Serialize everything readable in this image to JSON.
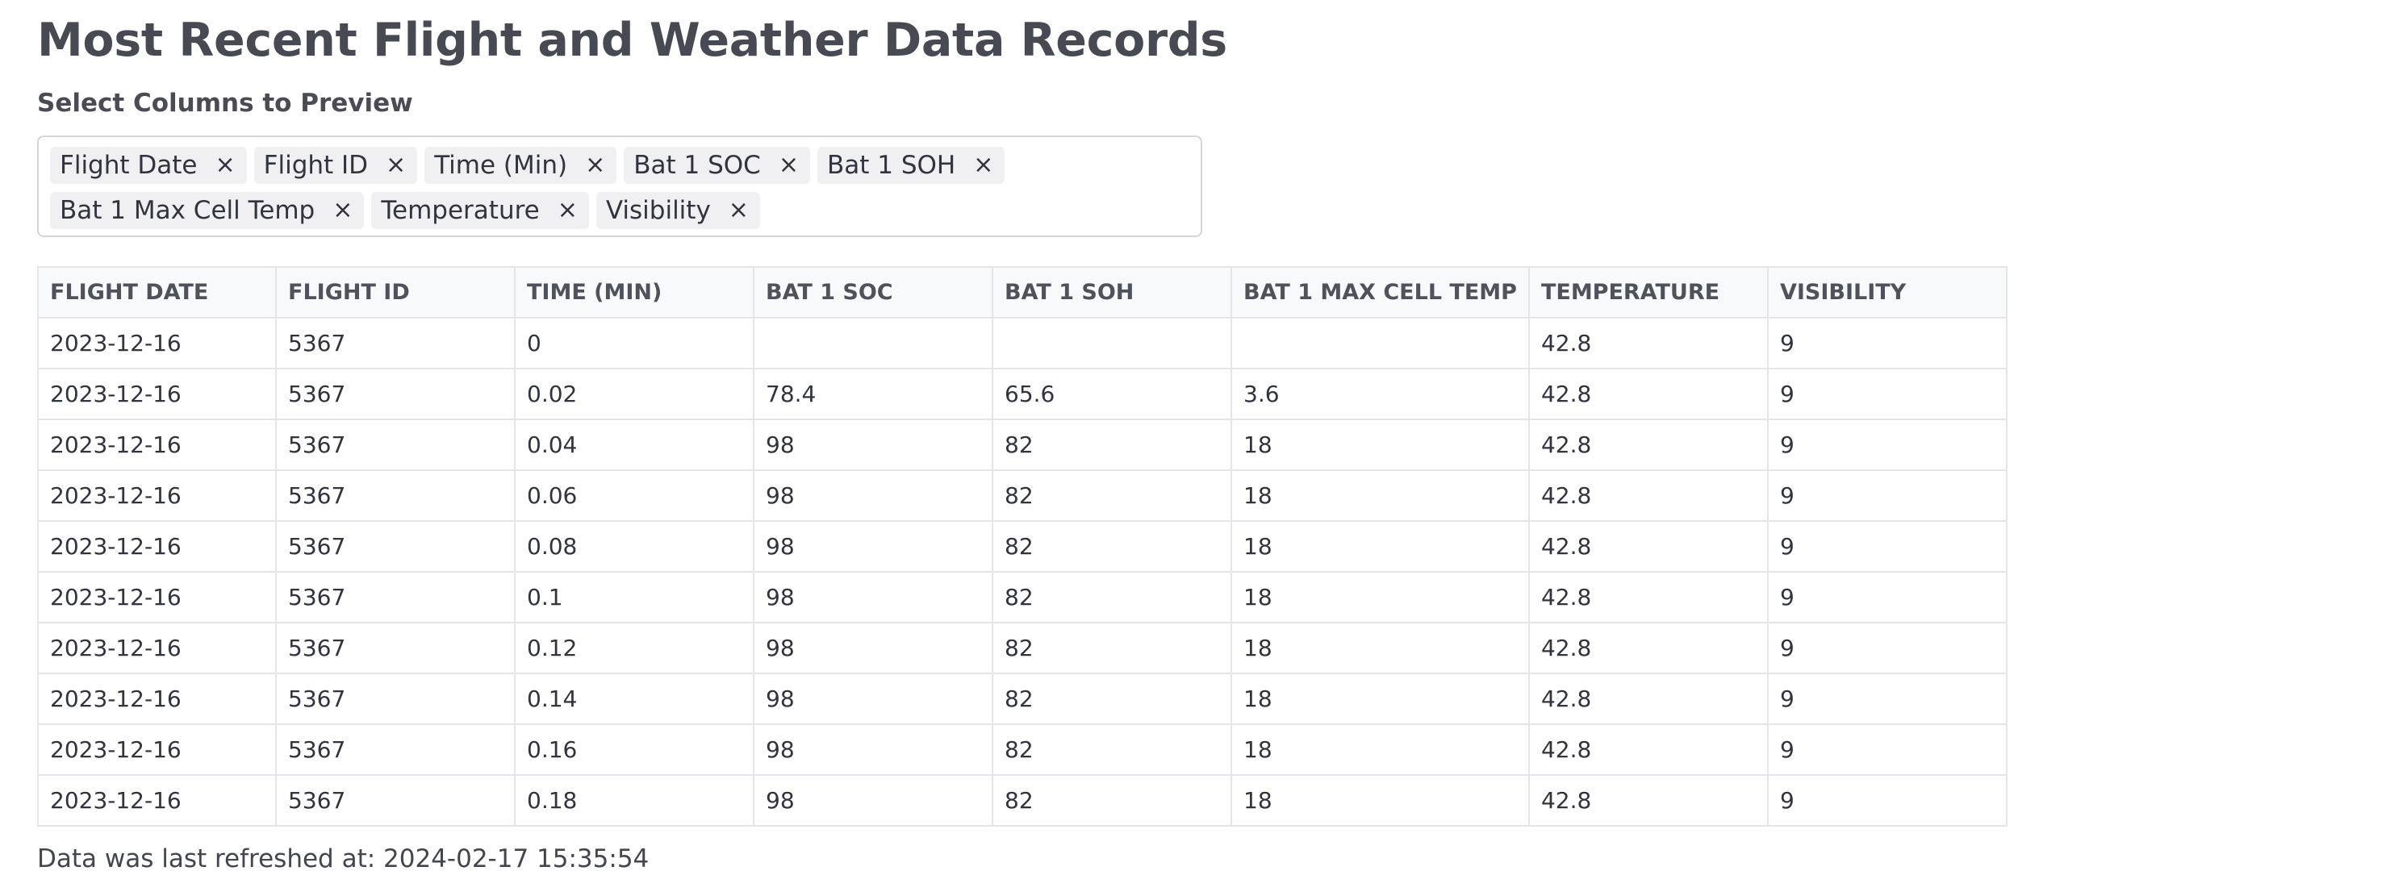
{
  "page": {
    "title": "Most Recent Flight and Weather Data Records"
  },
  "column_selector": {
    "label": "Select Columns to Preview",
    "close_glyph": "×",
    "chips": [
      {
        "label": "Flight Date"
      },
      {
        "label": "Flight ID"
      },
      {
        "label": "Time (Min)"
      },
      {
        "label": "Bat 1 SOC"
      },
      {
        "label": "Bat 1 SOH"
      },
      {
        "label": "Bat 1 Max Cell Temp"
      },
      {
        "label": "Temperature"
      },
      {
        "label": "Visibility"
      }
    ]
  },
  "table": {
    "headers": [
      "FLIGHT DATE",
      "FLIGHT ID",
      "TIME (MIN)",
      "BAT 1 SOC",
      "BAT 1 SOH",
      "BAT 1 MAX CELL TEMP",
      "TEMPERATURE",
      "VISIBILITY"
    ],
    "rows": [
      [
        "2023-12-16",
        "5367",
        "0",
        "",
        "",
        "",
        "42.8",
        "9"
      ],
      [
        "2023-12-16",
        "5367",
        "0.02",
        "78.4",
        "65.6",
        "3.6",
        "42.8",
        "9"
      ],
      [
        "2023-12-16",
        "5367",
        "0.04",
        "98",
        "82",
        "18",
        "42.8",
        "9"
      ],
      [
        "2023-12-16",
        "5367",
        "0.06",
        "98",
        "82",
        "18",
        "42.8",
        "9"
      ],
      [
        "2023-12-16",
        "5367",
        "0.08",
        "98",
        "82",
        "18",
        "42.8",
        "9"
      ],
      [
        "2023-12-16",
        "5367",
        "0.1",
        "98",
        "82",
        "18",
        "42.8",
        "9"
      ],
      [
        "2023-12-16",
        "5367",
        "0.12",
        "98",
        "82",
        "18",
        "42.8",
        "9"
      ],
      [
        "2023-12-16",
        "5367",
        "0.14",
        "98",
        "82",
        "18",
        "42.8",
        "9"
      ],
      [
        "2023-12-16",
        "5367",
        "0.16",
        "98",
        "82",
        "18",
        "42.8",
        "9"
      ],
      [
        "2023-12-16",
        "5367",
        "0.18",
        "98",
        "82",
        "18",
        "42.8",
        "9"
      ]
    ]
  },
  "footer": {
    "refresh_text": "Data was last refreshed at: 2024-02-17 15:35:54"
  }
}
